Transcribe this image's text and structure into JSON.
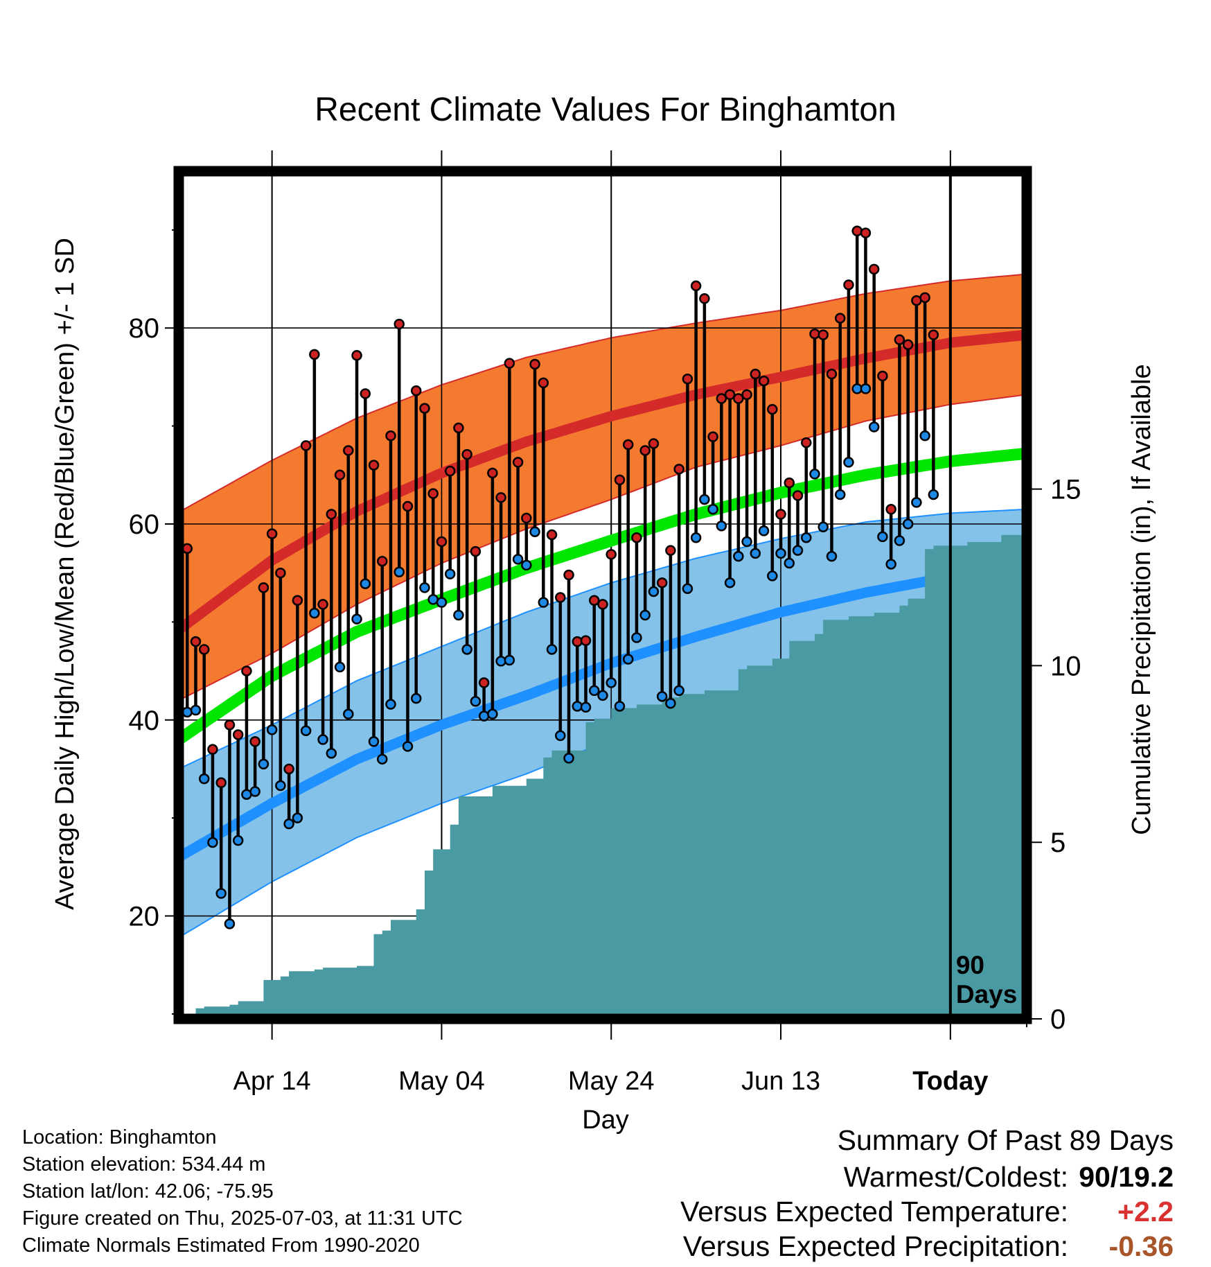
{
  "colors": {
    "high_band": "#f47a30",
    "high_line": "#d42a2a",
    "low_band": "#84c2ea",
    "low_line": "#1e90ff",
    "mean_line": "#00e600",
    "precip": "#4a9aa4",
    "high_marker": "#cc2222",
    "low_marker": "#1e88e5",
    "summary_temp": "#d93030",
    "summary_precip": "#a8552a"
  },
  "chart_data": {
    "type": "line",
    "title": "Recent Climate Values For Binghamton",
    "xlabel": "Day",
    "ylabel": "Average Daily High/Low/Mean (Red/Blue/Green) +/- 1 SD",
    "y2label": "Cumulative Precipitation (in), If Available",
    "xlim": [
      -11,
      89
    ],
    "ylim": [
      9.5,
      96
    ],
    "y2lim": [
      0,
      24
    ],
    "y_ticks": [
      20,
      40,
      60,
      80
    ],
    "y2_ticks": [
      0,
      5,
      10,
      15
    ],
    "x_ticks": [
      {
        "day": 0,
        "label": "Apr 14"
      },
      {
        "day": 20,
        "label": "May 04"
      },
      {
        "day": 40,
        "label": "May 24"
      },
      {
        "day": 60,
        "label": "Jun 13"
      },
      {
        "day": 80,
        "label": "Today"
      }
    ],
    "today_marker": {
      "day": 80,
      "label_1": "90",
      "label_2": "Days"
    },
    "normals": {
      "days": [
        -11,
        0,
        10,
        20,
        30,
        40,
        50,
        60,
        70,
        80,
        89
      ],
      "high_mean": [
        49.2,
        56.3,
        61.3,
        65.2,
        68.4,
        71.0,
        73.2,
        75.0,
        76.9,
        78.5,
        79.3
      ],
      "high_upper": [
        61.2,
        66.5,
        70.8,
        74.2,
        77.0,
        79.0,
        80.5,
        81.8,
        83.5,
        84.8,
        85.5
      ],
      "high_lower": [
        42.0,
        46.8,
        51.8,
        56.0,
        59.5,
        62.5,
        65.8,
        68.0,
        70.5,
        72.2,
        73.2
      ],
      "mean": [
        38.0,
        44.5,
        49.0,
        52.3,
        55.5,
        58.3,
        61.0,
        63.2,
        65.0,
        66.4,
        67.2
      ],
      "low_mean": [
        26.0,
        31.5,
        36.0,
        39.5,
        42.5,
        45.8,
        48.5,
        51.0,
        53.0,
        54.6,
        55.4
      ],
      "low_upper": [
        35.0,
        39.5,
        44.0,
        47.5,
        51.0,
        54.0,
        56.5,
        58.5,
        60.2,
        61.1,
        61.5
      ],
      "low_lower": [
        17.8,
        23.5,
        28.0,
        31.5,
        34.5,
        38.0,
        41.0,
        44.0,
        46.8,
        48.9,
        49.8
      ]
    },
    "daily": {
      "start_day": -10,
      "highs": [
        57.5,
        48.0,
        47.2,
        37.0,
        33.6,
        39.5,
        38.5,
        45.0,
        37.8,
        53.5,
        59.0,
        55.0,
        35.0,
        52.2,
        68.0,
        77.3,
        51.8,
        61.0,
        65.0,
        67.5,
        77.2,
        73.3,
        66.0,
        56.2,
        69.0,
        80.4,
        61.8,
        73.6,
        71.8,
        63.1,
        58.2,
        65.4,
        69.8,
        67.1,
        57.2,
        43.8,
        65.2,
        62.7,
        76.4,
        66.3,
        60.6,
        76.3,
        74.4,
        58.9,
        52.5,
        54.8,
        48.0,
        48.1,
        52.2,
        51.8,
        56.9,
        64.5,
        68.1,
        58.6,
        67.5,
        68.2,
        54.0,
        57.3,
        65.6,
        74.8,
        84.3,
        83.0,
        68.9,
        72.8,
        73.2,
        72.8,
        73.2,
        75.3,
        74.6,
        71.7,
        61.0,
        64.2,
        62.9,
        68.3,
        79.4,
        79.3,
        75.3,
        81.0,
        84.4,
        89.9,
        89.7,
        86.0,
        75.1,
        61.5,
        78.8,
        78.3,
        82.8,
        83.1,
        79.3
      ],
      "lows": [
        40.8,
        41.0,
        34.0,
        27.5,
        22.3,
        19.2,
        27.7,
        32.4,
        32.7,
        35.5,
        39.0,
        33.3,
        29.4,
        30.0,
        38.9,
        50.9,
        38.0,
        36.6,
        45.4,
        40.6,
        50.3,
        53.9,
        37.8,
        36.0,
        41.6,
        55.1,
        37.3,
        42.2,
        53.5,
        52.3,
        52.0,
        54.9,
        50.7,
        47.2,
        41.9,
        40.4,
        40.6,
        46.0,
        46.1,
        56.4,
        55.8,
        59.2,
        52.0,
        47.2,
        38.4,
        36.1,
        41.4,
        41.3,
        43.0,
        42.5,
        43.8,
        41.4,
        46.2,
        48.4,
        50.7,
        53.1,
        42.4,
        41.7,
        43.0,
        53.4,
        58.6,
        62.5,
        61.5,
        59.8,
        54.0,
        56.7,
        58.2,
        57.0,
        59.3,
        54.7,
        57.0,
        56.0,
        57.3,
        58.6,
        65.1,
        59.7,
        56.7,
        63.0,
        66.3,
        73.8,
        73.8,
        69.9,
        58.7,
        55.9,
        58.3,
        60.0,
        62.2,
        69.0,
        63.0
      ]
    },
    "precip_cumulative": {
      "days": [
        -10,
        -9,
        -8,
        -5,
        -4,
        -2,
        -1,
        1,
        2,
        5,
        6,
        10,
        11,
        12,
        13,
        14,
        16,
        17,
        18,
        19,
        21,
        22,
        24,
        26,
        27,
        30,
        32,
        33,
        34,
        35,
        37,
        38,
        40,
        43,
        45,
        46,
        48,
        51,
        55,
        56,
        57,
        59,
        61,
        64,
        65,
        68,
        71,
        72,
        74,
        75,
        77,
        78,
        82,
        84,
        86,
        89
      ],
      "values": [
        0.1,
        0.3,
        0.35,
        0.4,
        0.5,
        0.5,
        1.1,
        1.2,
        1.35,
        1.4,
        1.45,
        1.5,
        1.5,
        2.4,
        2.5,
        2.8,
        2.8,
        3.1,
        4.2,
        4.8,
        5.5,
        6.3,
        6.3,
        6.6,
        6.6,
        6.8,
        7.4,
        7.6,
        7.6,
        7.6,
        8.4,
        8.5,
        8.8,
        8.9,
        8.9,
        9.1,
        9.2,
        9.3,
        9.9,
        10.0,
        10.0,
        10.2,
        10.7,
        10.9,
        11.3,
        11.4,
        11.5,
        11.5,
        11.7,
        11.9,
        13.3,
        13.4,
        13.5,
        13.5,
        13.7,
        13.8
      ]
    }
  },
  "info": {
    "location": "Location: Binghamton",
    "elevation": "Station elevation: 534.44 m",
    "latlon": "Station lat/lon: 42.06; -75.95",
    "created": "Figure created on Thu, 2025-07-03, at 11:31 UTC",
    "normals": "Climate Normals Estimated From 1990-2020"
  },
  "summary": {
    "title": "Summary Of Past 89 Days",
    "warm_cold_label": "Warmest/Coldest:",
    "warm_cold_value": "90/19.2",
    "temp_label": "Versus Expected Temperature:",
    "temp_value": "+2.2",
    "precip_label": "Versus Expected Precipitation:",
    "precip_value": "-0.36"
  }
}
